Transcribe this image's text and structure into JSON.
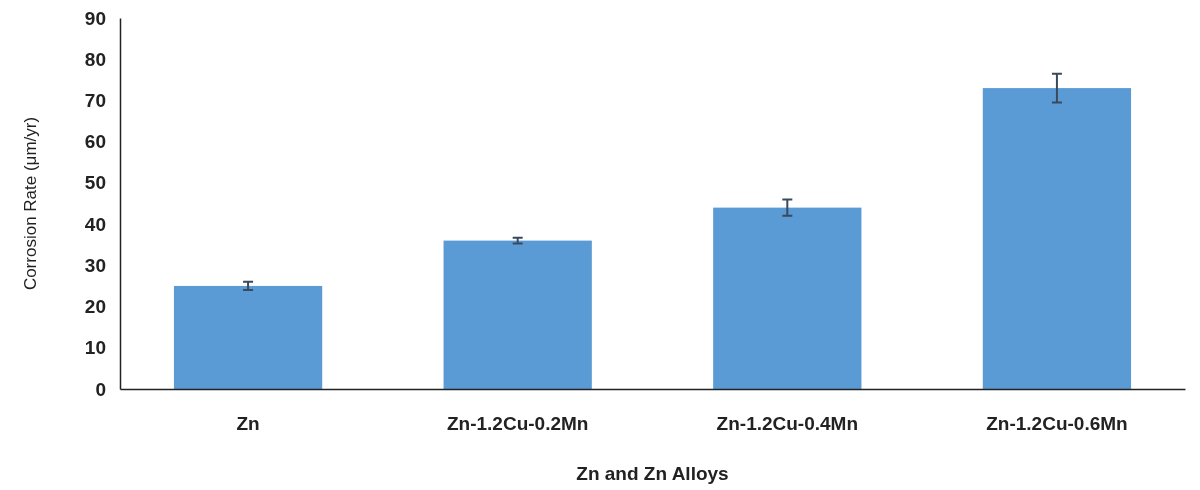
{
  "chart_data": {
    "type": "bar",
    "xlabel": "Zn and Zn Alloys",
    "ylabel": "Corrosion Rate (μm/yr)",
    "categories": [
      "Zn",
      "Zn-1.2Cu-0.2Mn",
      "Zn-1.2Cu-0.4Mn",
      "Zn-1.2Cu-0.6Mn"
    ],
    "values": [
      25,
      36,
      44,
      73
    ],
    "errors": [
      1,
      0.7,
      2,
      3.5
    ],
    "color": "#5b9bd5",
    "ylim": [
      0,
      90
    ],
    "yticks": [
      0,
      10,
      20,
      30,
      40,
      50,
      60,
      70,
      80,
      90
    ],
    "grid": false
  }
}
